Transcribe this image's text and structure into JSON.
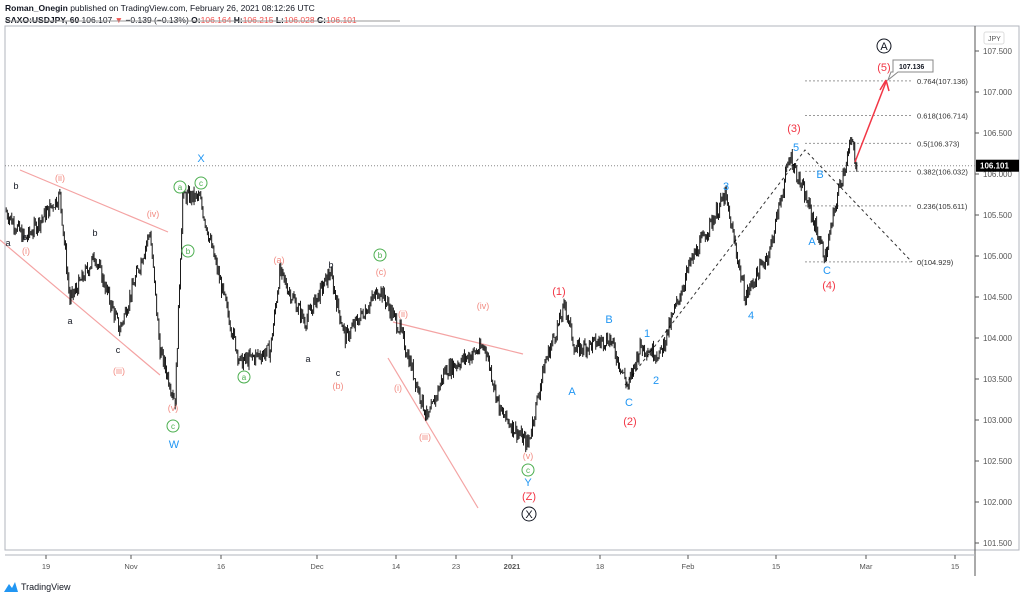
{
  "header": {
    "author": "Roman_Onegin",
    "published": "published on TradingView.com, February 26, 2021 08:12:26 UTC",
    "symbol": "SAXO:USDJPY, 60",
    "last": "106.107",
    "arrow": "▼",
    "change": "−0.139 (−0.13%)",
    "o_label": "O:",
    "o": "106.164",
    "h_label": "H:",
    "h": "106.215",
    "l_label": "L:",
    "l": "106.028",
    "c_label": "C:",
    "c": "106.101"
  },
  "footer": {
    "brand": "TradingView"
  },
  "chart_data": {
    "type": "candlestick",
    "currency": "JPY",
    "ylim": [
      101.3,
      107.9
    ],
    "y_ticks": [
      "107.500",
      "107.000",
      "106.500",
      "106.000",
      "105.500",
      "105.000",
      "104.500",
      "104.000",
      "103.500",
      "103.000",
      "102.500",
      "102.000",
      "101.500"
    ],
    "x_ticks": [
      "19",
      "Nov",
      "16",
      "Dec",
      "14",
      "23",
      "2021",
      "18",
      "Feb",
      "15",
      "Mar",
      "15"
    ],
    "price_path": [
      [
        -6.5,
        105.56
      ],
      [
        -3.3,
        105.2
      ],
      [
        2.2,
        105.74
      ],
      [
        3.8,
        104.46
      ],
      [
        7.8,
        105.0
      ],
      [
        11.7,
        104.1
      ],
      [
        16.5,
        105.3
      ],
      [
        18.1,
        103.85
      ],
      [
        20.5,
        103.24
      ],
      [
        21.7,
        105.74
      ],
      [
        24.4,
        105.7
      ],
      [
        30.8,
        103.7
      ],
      [
        35.6,
        103.85
      ],
      [
        37.1,
        104.8
      ],
      [
        41.1,
        104.2
      ],
      [
        45.1,
        104.8
      ],
      [
        47.5,
        104.0
      ],
      [
        53,
        104.6
      ],
      [
        56.2,
        104.1
      ],
      [
        60.6,
        103.0
      ],
      [
        63.3,
        103.6
      ],
      [
        69.7,
        103.9
      ],
      [
        72.1,
        103.1
      ],
      [
        76.5,
        102.7
      ],
      [
        79.2,
        103.7
      ],
      [
        82.4,
        104.4
      ],
      [
        84,
        103.85
      ],
      [
        89.5,
        104.0
      ],
      [
        92.4,
        103.4
      ],
      [
        94.3,
        103.9
      ],
      [
        97.5,
        103.8
      ],
      [
        102.2,
        104.9
      ],
      [
        107.8,
        105.74
      ],
      [
        111,
        104.5
      ],
      [
        114.9,
        105.07
      ],
      [
        118.1,
        106.23
      ],
      [
        121.3,
        105.56
      ],
      [
        123.7,
        104.98
      ],
      [
        126,
        105.87
      ],
      [
        127.9,
        106.41
      ],
      [
        128.7,
        106.1
      ]
    ],
    "current_price": "106.101",
    "target_label": "107.136",
    "fib_levels": [
      {
        "ratio": 0.764,
        "price": 107.136,
        "label": "0.764(107.136)"
      },
      {
        "ratio": 0.618,
        "price": 106.714,
        "label": "0.618(106.714)"
      },
      {
        "ratio": 0.5,
        "price": 106.373,
        "label": "0.5(106.373)"
      },
      {
        "ratio": 0.382,
        "price": 106.032,
        "label": "0.382(106.032)"
      },
      {
        "ratio": 0.236,
        "price": 105.611,
        "label": "0.236(105.611)"
      },
      {
        "ratio": 0,
        "price": 104.929,
        "label": "0(104.929)"
      }
    ],
    "wave_labels": [
      "b",
      "a",
      "c",
      "a",
      "b",
      "c",
      "a",
      "b",
      "c",
      "(ii)",
      "(i)",
      "(iv)",
      "(iii)",
      "(v)",
      "(a)",
      "(c)",
      "(b)",
      "(ii)",
      "(iv)",
      "(i)",
      "(iii)",
      "(v)",
      "a",
      "c",
      "b",
      "c",
      "a",
      "b",
      "c",
      "X",
      "W",
      "Y",
      "A",
      "B",
      "C",
      "1",
      "2",
      "3",
      "4",
      "5",
      "B",
      "A",
      "C",
      "(1)",
      "(2)",
      "(Z)",
      "(3)",
      "(4)",
      "(5)",
      "X",
      "A"
    ],
    "colors": {
      "up": "#000000",
      "black": "#131722",
      "pink": "#f28b82",
      "green": "#4caf50",
      "blue": "#2196f3",
      "red": "#f23645"
    }
  }
}
